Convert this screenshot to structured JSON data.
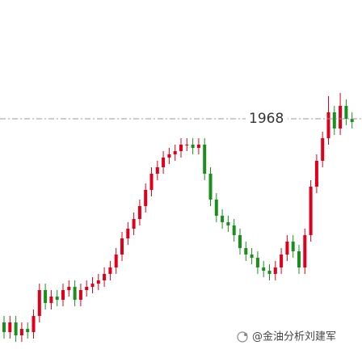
{
  "chart_data": {
    "type": "candlestick",
    "up_color": "#e0001b",
    "down_color": "#1b8f1b",
    "ylim": [
      1892.75,
      2004.75
    ],
    "hline": 1968,
    "watermark": "@金油分析刘建军",
    "open": [
      1905,
      1902,
      1905,
      1901,
      1903,
      1902,
      1907,
      1915,
      1911,
      1913,
      1912,
      1915,
      1916,
      1912,
      1915,
      1916,
      1917,
      1918,
      1920,
      1922,
      1926,
      1931,
      1934,
      1937,
      1941,
      1946,
      1951,
      1953,
      1956,
      1957,
      1958,
      1960,
      1960,
      1959,
      1960,
      1951,
      1943,
      1938,
      1936,
      1935,
      1932,
      1928,
      1926,
      1925,
      1922,
      1921,
      1920,
      1922,
      1926,
      1930,
      1927,
      1922,
      1932,
      1947,
      1955,
      1962,
      1970,
      1965,
      1972,
      1968
    ],
    "high": [
      1907,
      1907,
      1907,
      1905,
      1905,
      1909,
      1917,
      1917,
      1915,
      1915,
      1917,
      1918,
      1918,
      1917,
      1918,
      1919,
      1920,
      1922,
      1924,
      1928,
      1933,
      1936,
      1939,
      1943,
      1948,
      1953,
      1955,
      1958,
      1959,
      1960,
      1962,
      1962,
      1962,
      1962,
      1962,
      1953,
      1945,
      1940,
      1938,
      1937,
      1934,
      1930,
      1928,
      1927,
      1924,
      1923,
      1924,
      1928,
      1932,
      1932,
      1929,
      1934,
      1949,
      1957,
      1964,
      1975,
      1972,
      1976,
      1974,
      1970
    ],
    "low": [
      1900,
      1900,
      1899,
      1899,
      1900,
      1900,
      1905,
      1909,
      1909,
      1910,
      1910,
      1913,
      1910,
      1910,
      1913,
      1914,
      1915,
      1916,
      1918,
      1920,
      1924,
      1929,
      1932,
      1935,
      1939,
      1944,
      1949,
      1951,
      1954,
      1955,
      1956,
      1958,
      1957,
      1957,
      1949,
      1941,
      1936,
      1934,
      1933,
      1930,
      1926,
      1924,
      1923,
      1920,
      1919,
      1918,
      1918,
      1920,
      1924,
      1925,
      1920,
      1920,
      1930,
      1945,
      1953,
      1960,
      1963,
      1963,
      1966,
      1965
    ],
    "close": [
      1902,
      1905,
      1901,
      1903,
      1902,
      1907,
      1915,
      1911,
      1913,
      1912,
      1915,
      1916,
      1912,
      1915,
      1916,
      1917,
      1918,
      1920,
      1922,
      1926,
      1931,
      1934,
      1937,
      1941,
      1946,
      1951,
      1953,
      1956,
      1957,
      1958,
      1960,
      1960,
      1959,
      1960,
      1951,
      1943,
      1938,
      1936,
      1935,
      1932,
      1928,
      1926,
      1925,
      1922,
      1921,
      1920,
      1922,
      1926,
      1930,
      1927,
      1922,
      1932,
      1947,
      1955,
      1962,
      1970,
      1965,
      1972,
      1968,
      1967
    ]
  }
}
